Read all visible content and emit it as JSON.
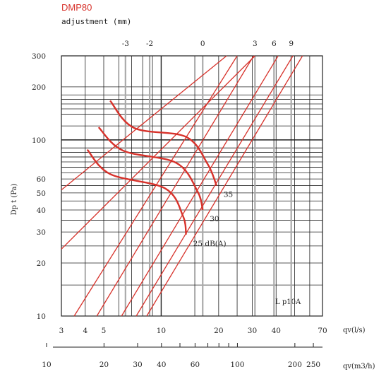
{
  "chart_data": {
    "type": "line",
    "title": "DMP80",
    "subtitle": "adjustment (mm)",
    "ylabel": "Dp t (Pa)",
    "xlabel": "qv(l/s)",
    "x2label": "qv(m3/h)",
    "annotation": "L p10A",
    "accent_color": "#d7322b",
    "scale": "log-log",
    "grid": true,
    "xlim": [
      3,
      70
    ],
    "ylim": [
      10,
      300
    ],
    "x_ticks": [
      "3",
      "4",
      "5",
      "10",
      "20",
      "30",
      "40",
      "70"
    ],
    "y_ticks": [
      "10",
      "20",
      "30",
      "40",
      "50",
      "60",
      "100",
      "200",
      "300"
    ],
    "x2_ticks": [
      "10",
      "20",
      "30",
      "40",
      "60",
      "100",
      "200",
      "250"
    ],
    "adjustment_ticks": [
      "-3",
      "-2",
      "0",
      "3",
      "6",
      "9"
    ],
    "adjustment_positions_ls": [
      6.5,
      8.7,
      16.5,
      31,
      39,
      48
    ],
    "adjustment_lines": [
      {
        "qv": [
          3.5,
          25
        ],
        "dpt": [
          10,
          300
        ]
      },
      {
        "qv": [
          4.6,
          30.5
        ],
        "dpt": [
          10,
          300
        ]
      },
      {
        "qv": [
          6.2,
          41
        ],
        "dpt": [
          10,
          300
        ]
      },
      {
        "qv": [
          7.4,
          49
        ],
        "dpt": [
          10,
          300
        ]
      },
      {
        "qv": [
          8.4,
          55
        ],
        "dpt": [
          10,
          300
        ]
      },
      {
        "qv": [
          3,
          31
        ],
        "dpt": [
          24,
          300
        ]
      },
      {
        "qv": [
          3,
          22
        ],
        "dpt": [
          52,
          300
        ]
      }
    ],
    "sound_levels": [
      {
        "label": "25 dB(A)",
        "points": [
          [
            4.1,
            88
          ],
          [
            5.4,
            64
          ],
          [
            10.5,
            53
          ],
          [
            13.0,
            37
          ],
          [
            13.5,
            29
          ]
        ]
      },
      {
        "label": "30",
        "points": [
          [
            4.7,
            118
          ],
          [
            6.3,
            87
          ],
          [
            12.0,
            74
          ],
          [
            15.5,
            51
          ],
          [
            16.5,
            40
          ]
        ]
      },
      {
        "label": "35",
        "points": [
          [
            5.4,
            167
          ],
          [
            7.2,
            117
          ],
          [
            13.5,
            104
          ],
          [
            17.5,
            73
          ],
          [
            19.5,
            55
          ]
        ]
      }
    ]
  }
}
